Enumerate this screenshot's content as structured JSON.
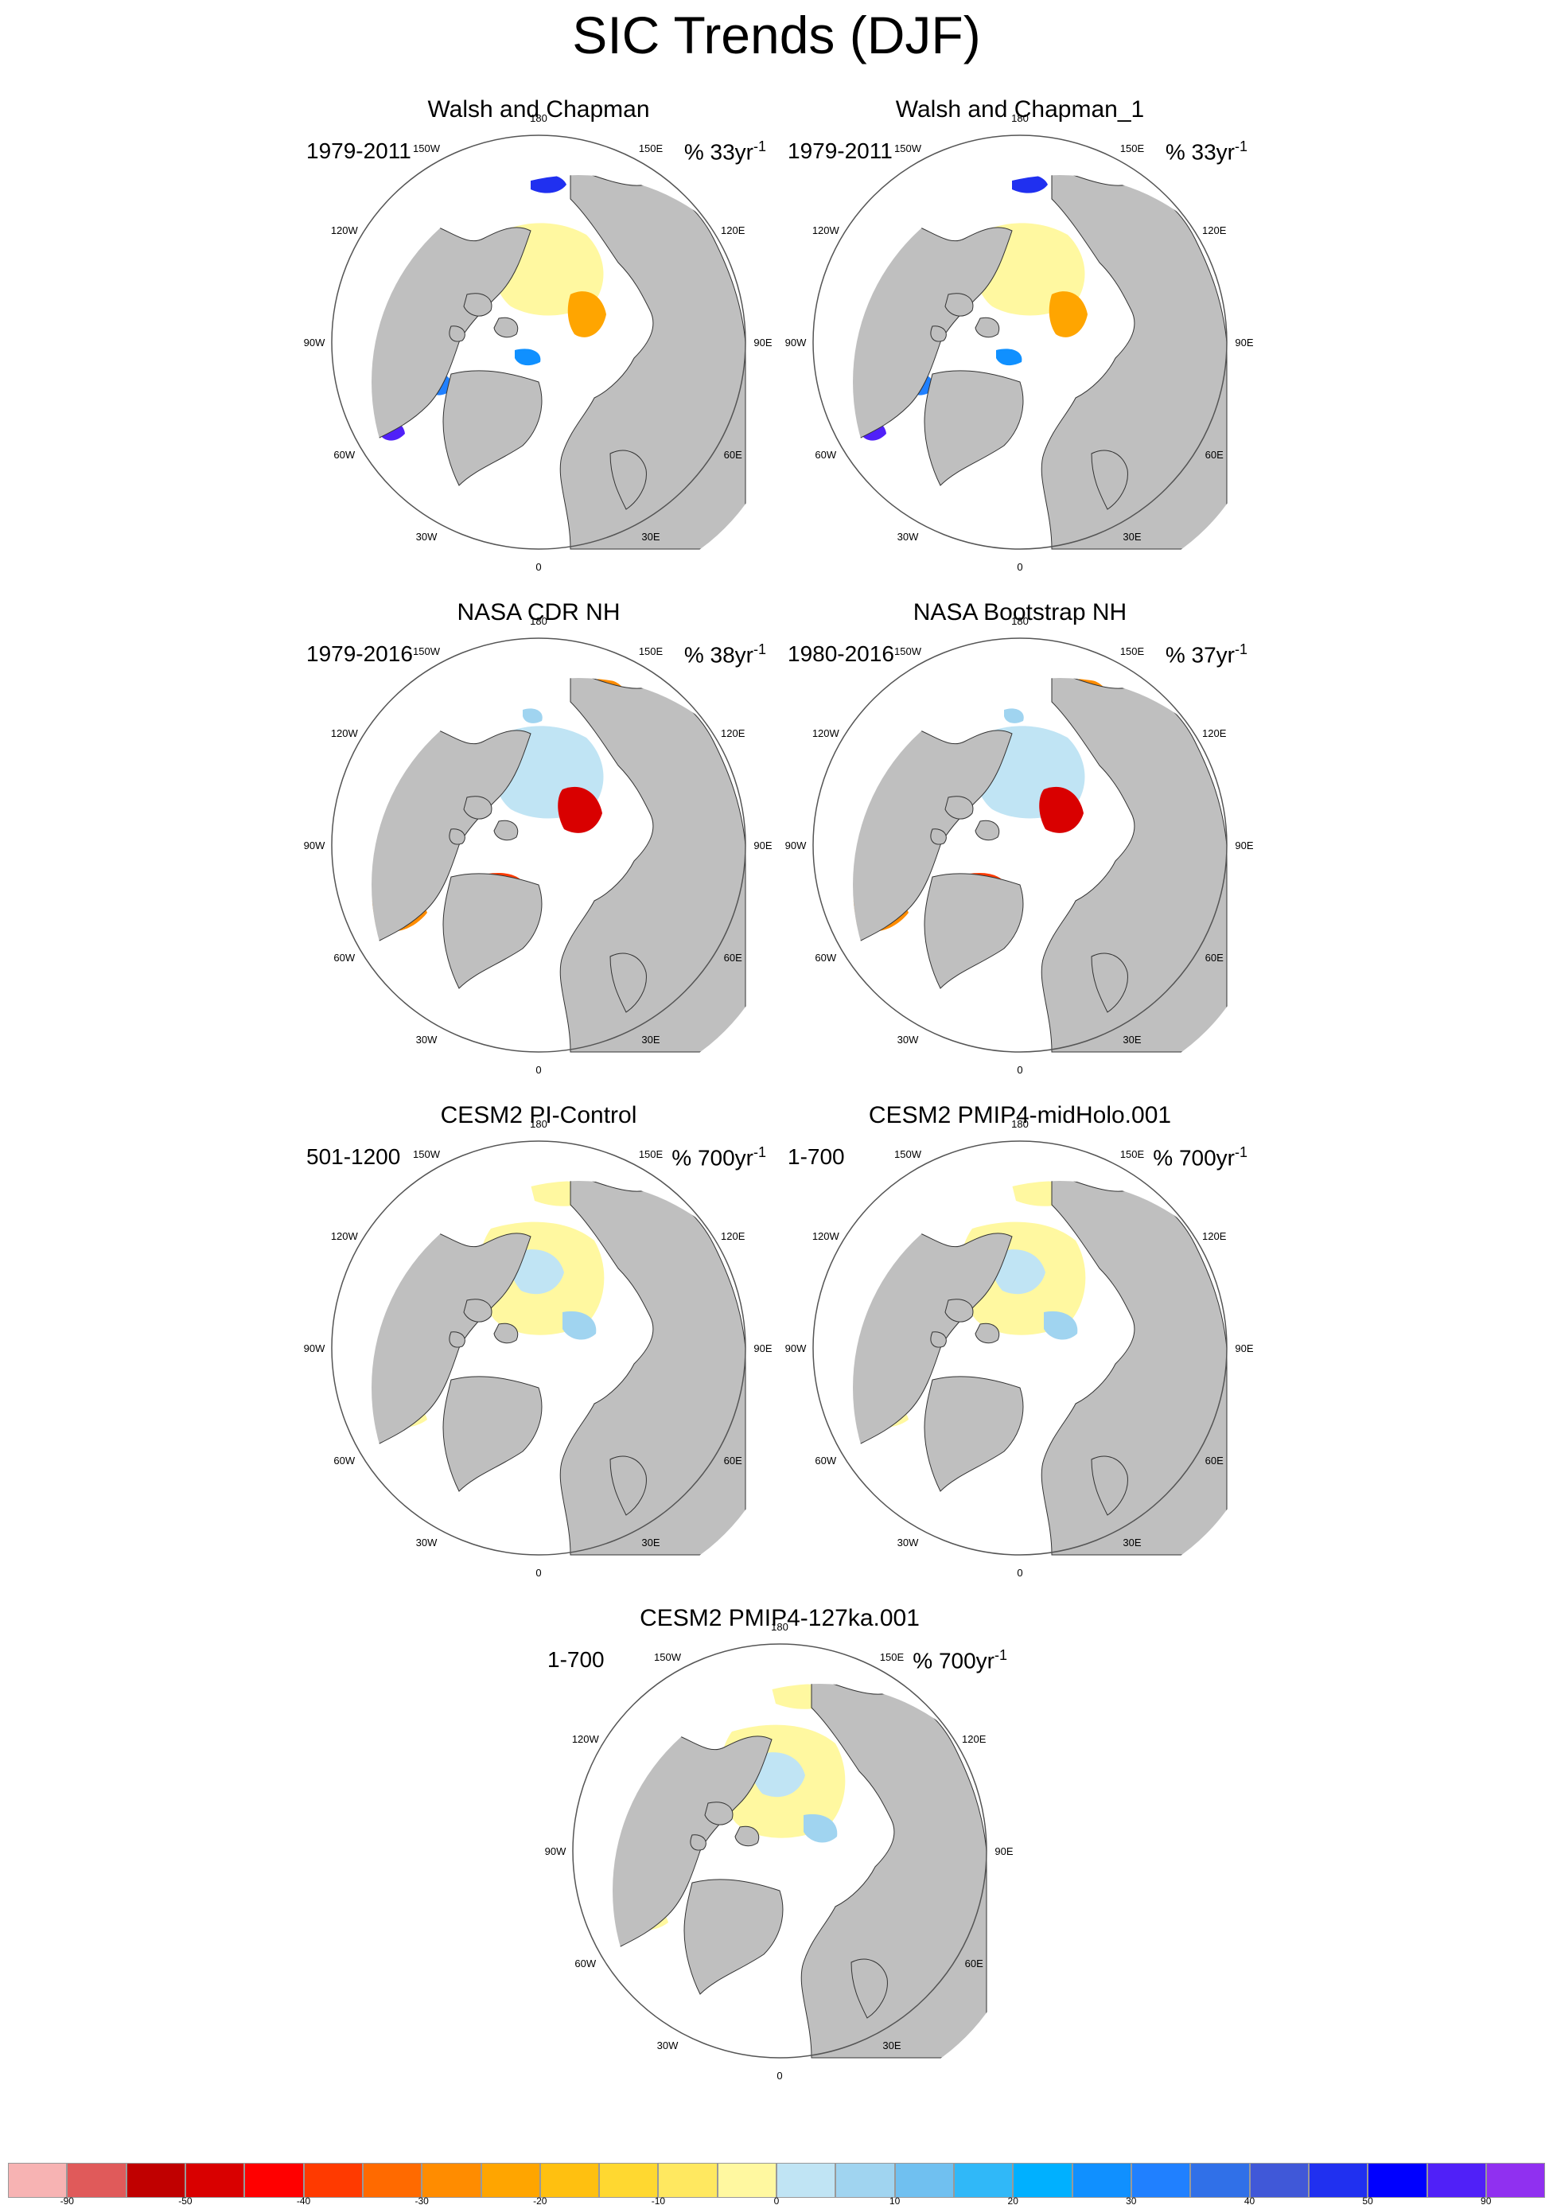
{
  "title": "SIC Trends (DJF)",
  "lon_labels": [
    "180",
    "150E",
    "120E",
    "90E",
    "60E",
    "30E",
    "0",
    "30W",
    "60W",
    "90W",
    "120W",
    "150W"
  ],
  "colors": {
    "land": "#bfbfbf",
    "ocean": "#ffffff",
    "outline": "#333333"
  },
  "panels": [
    {
      "title": "Walsh and Chapman",
      "years": "1979-2011",
      "units": "% 33yr",
      "units_exp": "-1",
      "pattern": "obs-old"
    },
    {
      "title": "Walsh and Chapman_1",
      "years": "1979-2011",
      "units": "% 33yr",
      "units_exp": "-1",
      "pattern": "obs-old"
    },
    {
      "title": "NASA CDR NH",
      "years": "1979-2016",
      "units": "% 38yr",
      "units_exp": "-1",
      "pattern": "obs-new"
    },
    {
      "title": "NASA Bootstrap NH",
      "years": "1980-2016",
      "units": "% 37yr",
      "units_exp": "-1",
      "pattern": "obs-new"
    },
    {
      "title": "CESM2 PI-Control",
      "years": "501-1200",
      "units": "% 700yr",
      "units_exp": "-1",
      "pattern": "model"
    },
    {
      "title": "CESM2 PMIP4-midHolo.001",
      "years": "1-700",
      "units": "% 700yr",
      "units_exp": "-1",
      "pattern": "model"
    },
    {
      "title": "CESM2 PMIP4-127ka.001",
      "years": "1-700",
      "units": "% 700yr",
      "units_exp": "-1",
      "pattern": "model"
    }
  ],
  "colorbar": {
    "colors": [
      "#f7b3b3",
      "#e05a5a",
      "#c00000",
      "#d90000",
      "#ff0000",
      "#ff3a00",
      "#ff6a00",
      "#ff8c00",
      "#ffa500",
      "#ffc010",
      "#ffd830",
      "#ffe860",
      "#fff8a0",
      "#c0e4f4",
      "#a0d4f0",
      "#70c0f0",
      "#30b8f8",
      "#00b0ff",
      "#1090ff",
      "#2080ff",
      "#3070e8",
      "#4058d8",
      "#2030f0",
      "#0000ff",
      "#5020f8",
      "#9030f0"
    ],
    "labels": [
      "-90",
      "-50",
      "-40",
      "-30",
      "-20",
      "-10",
      "0",
      "10",
      "20",
      "30",
      "40",
      "50",
      "90"
    ]
  }
}
